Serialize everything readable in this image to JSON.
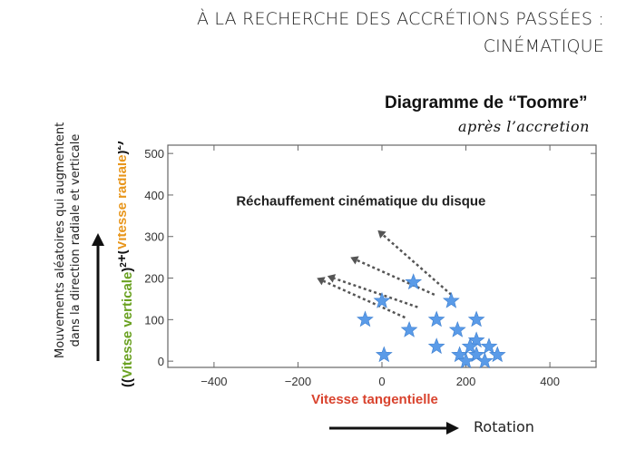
{
  "slide": {
    "title_line1": "À LA RECHERCHE DES ACCRÉTIONS PASSÉES :",
    "title_line2": "CINÉMATIQUE"
  },
  "diagram": {
    "title": "Diagramme de “Toomre”",
    "subtitle": "après l’accretion"
  },
  "left_caption": {
    "line1": "Mouvements aléatoires qui augmentent",
    "line2": "dans la direction radiale et verticale"
  },
  "bottom": {
    "rotation_label": "Rotation"
  },
  "colors": {
    "star": "#5a9be8",
    "star_stroke": "#3d7fd0",
    "arrow": "#555555",
    "axis": "#666666",
    "xlabel": "#d9432e",
    "ylabel_green": "#6aa121",
    "ylabel_orange": "#e8961c",
    "black": "#111111"
  },
  "chart_data": {
    "type": "scatter",
    "title": "",
    "annotation": "Réchauffement cinématique du disque",
    "xlabel": "Vitesse tangentielle",
    "ylabel_parts": [
      {
        "text": "((",
        "color": "black"
      },
      {
        "text": "Vitesse verticale",
        "color": "green"
      },
      {
        "text": ")",
        "color": "black"
      },
      {
        "text": "2",
        "color": "black",
        "sup": true
      },
      {
        "text": "+(",
        "color": "black"
      },
      {
        "text": "Vitesse radiale",
        "color": "orange"
      },
      {
        "text": ")",
        "color": "black"
      },
      {
        "text": "2",
        "color": "black",
        "sup": true
      },
      {
        "text": ")",
        "color": "black"
      },
      {
        "text": "0.5",
        "color": "black",
        "sup": true
      }
    ],
    "xlim": [
      -510,
      510
    ],
    "ylim": [
      -15,
      520
    ],
    "x_ticks": [
      -400,
      -200,
      0,
      200,
      400
    ],
    "x_tick_labels": [
      "−400",
      "−200",
      "0",
      "200",
      "400"
    ],
    "y_ticks": [
      0,
      100,
      200,
      300,
      400,
      500
    ],
    "y_tick_labels": [
      "0",
      "100",
      "200",
      "300",
      "400",
      "500"
    ],
    "grid": false,
    "points": [
      {
        "x": 0,
        "y": 145
      },
      {
        "x": -40,
        "y": 100
      },
      {
        "x": 75,
        "y": 190
      },
      {
        "x": 165,
        "y": 145
      },
      {
        "x": 130,
        "y": 100
      },
      {
        "x": 65,
        "y": 75
      },
      {
        "x": 5,
        "y": 15
      },
      {
        "x": 130,
        "y": 35
      },
      {
        "x": 180,
        "y": 75
      },
      {
        "x": 225,
        "y": 100
      },
      {
        "x": 225,
        "y": 50
      },
      {
        "x": 210,
        "y": 35
      },
      {
        "x": 255,
        "y": 35
      },
      {
        "x": 185,
        "y": 15
      },
      {
        "x": 225,
        "y": 15
      },
      {
        "x": 275,
        "y": 15
      },
      {
        "x": 200,
        "y": 0
      },
      {
        "x": 245,
        "y": 0
      }
    ],
    "arrows": [
      {
        "from": [
          165,
          160
        ],
        "to": [
          -10,
          315
        ]
      },
      {
        "from": [
          125,
          160
        ],
        "to": [
          -75,
          250
        ]
      },
      {
        "from": [
          85,
          130
        ],
        "to": [
          -130,
          205
        ]
      },
      {
        "from": [
          55,
          105
        ],
        "to": [
          -155,
          200
        ]
      }
    ]
  }
}
